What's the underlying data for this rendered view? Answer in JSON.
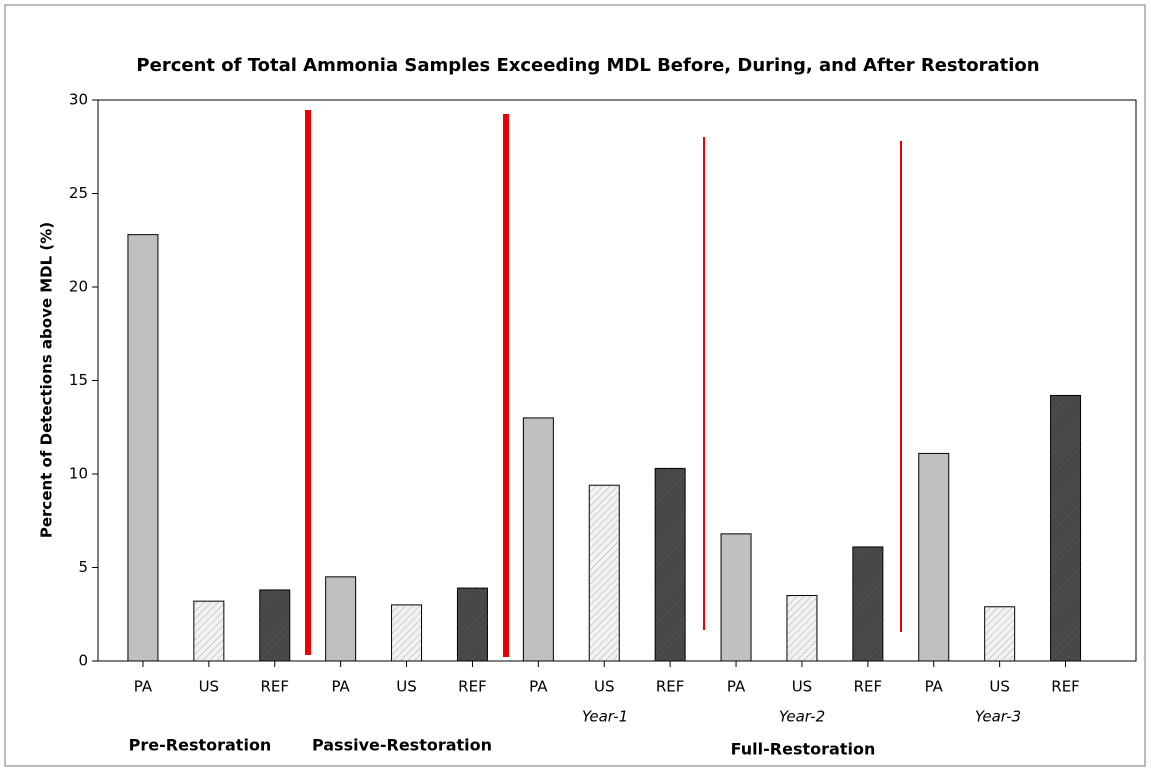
{
  "chart_data": {
    "type": "bar",
    "title": "Percent of Total Ammonia Samples Exceeding MDL Before, During, and After Restoration",
    "y_label": "Percent of Detections above MDL (%)",
    "categories": [
      "PA",
      "US",
      "REF",
      "PA",
      "US",
      "REF",
      "PA",
      "US",
      "REF",
      "PA",
      "US",
      "REF",
      "PA",
      "US",
      "REF"
    ],
    "values": [
      22.8,
      3.2,
      3.8,
      4.5,
      3.0,
      3.9,
      13.0,
      9.4,
      10.3,
      6.8,
      3.5,
      6.1,
      11.1,
      2.9,
      14.2
    ],
    "colors": [
      "#c0c0c0",
      "#f2f2f2",
      "#474747",
      "#c0c0c0",
      "#f2f2f2",
      "#474747",
      "#c0c0c0",
      "#f2f2f2",
      "#474747",
      "#c0c0c0",
      "#f2f2f2",
      "#474747",
      "#c0c0c0",
      "#f2f2f2",
      "#474747"
    ],
    "year_labels": [
      "Year-1",
      "Year-2",
      "Year-3"
    ],
    "phase_labels": [
      "Pre-Restoration",
      "Passive-Restoration",
      "Full-Restoration"
    ],
    "ylim": [
      0,
      30
    ],
    "yticks": [
      0,
      5,
      10,
      15,
      20,
      25,
      30
    ]
  }
}
